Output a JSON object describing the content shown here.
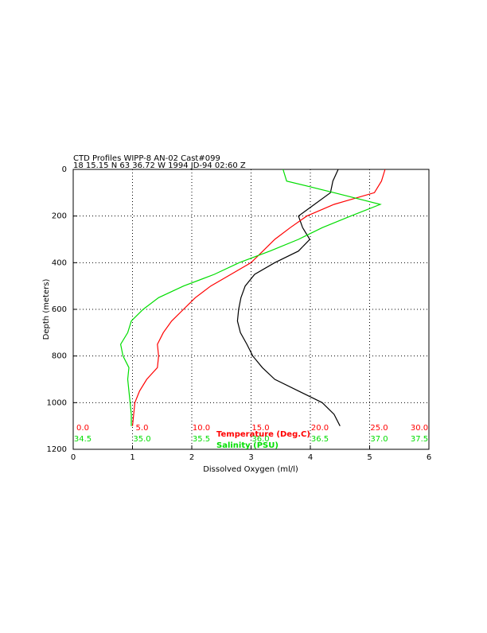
{
  "chart_data": {
    "type": "profile",
    "title": "CTD Profiles WIPP-8 AN-02 Cast#099",
    "subtitle": "18 15.15 N  63 36.72 W  1994 JD-94 02:60 Z",
    "xlabel": "Dissolved Oxygen (ml/l)",
    "ylabel": "Depth (meters)",
    "xlim": [
      0,
      6
    ],
    "xticks": [
      0,
      1,
      2,
      3,
      4,
      5,
      6
    ],
    "ylim": [
      1200,
      0
    ],
    "yticks": [
      0,
      200,
      400,
      600,
      800,
      1000,
      1200
    ],
    "grid": true,
    "temperature_axis": {
      "label": "Temperature (Deg.C)",
      "color": "#ff0000",
      "lim": [
        0,
        30
      ],
      "ticks": [
        {
          "value": 0,
          "label": "0.0"
        },
        {
          "value": 5,
          "label": "5.0"
        },
        {
          "value": 10,
          "label": "10.0"
        },
        {
          "value": 15,
          "label": "15.0"
        },
        {
          "value": 20,
          "label": "20.0"
        },
        {
          "value": 25,
          "label": "25.0"
        },
        {
          "value": 30,
          "label": "30.0"
        }
      ]
    },
    "salinity_axis": {
      "label": "Salinity (PSU)",
      "color": "#00dd00",
      "lim": [
        34.5,
        37.5
      ],
      "ticks": [
        34.5,
        {
          "value": 35,
          "label": "35.0"
        },
        35.5,
        {
          "value": 36,
          "label": "36.0"
        },
        36.5,
        {
          "value": 37,
          "label": "37.0"
        },
        37.5
      ]
    },
    "depth": [
      0,
      50,
      100,
      150,
      200,
      250,
      300,
      350,
      400,
      450,
      500,
      550,
      600,
      650,
      700,
      750,
      800,
      850,
      900,
      950,
      1000,
      1050,
      1100
    ],
    "series": [
      {
        "axis": "x",
        "color": "#000000",
        "values": [
          4.47,
          4.38,
          4.34,
          4.07,
          3.8,
          3.87,
          3.99,
          3.8,
          3.4,
          3.06,
          2.9,
          2.83,
          2.79,
          2.77,
          2.82,
          2.93,
          3.03,
          3.19,
          3.4,
          3.8,
          4.2,
          4.4,
          4.5
        ]
      },
      {
        "axis": "temperature_axis",
        "color": "#ff0000",
        "values": [
          26.3,
          26.0,
          25.4,
          22.0,
          19.7,
          18.3,
          17.0,
          16.0,
          15.0,
          13.3,
          11.6,
          10.3,
          9.3,
          8.3,
          7.6,
          7.1,
          7.2,
          7.1,
          6.2,
          5.6,
          5.2,
          5.1,
          5.0
        ]
      },
      {
        "axis": "salinity_axis",
        "color": "#00dd00",
        "values": [
          36.27,
          36.3,
          36.7,
          37.09,
          36.84,
          36.6,
          36.4,
          36.16,
          35.9,
          35.69,
          35.43,
          35.22,
          35.09,
          34.99,
          34.96,
          34.9,
          34.92,
          34.97,
          34.96,
          34.97,
          34.98,
          34.99,
          34.99
        ]
      }
    ]
  }
}
